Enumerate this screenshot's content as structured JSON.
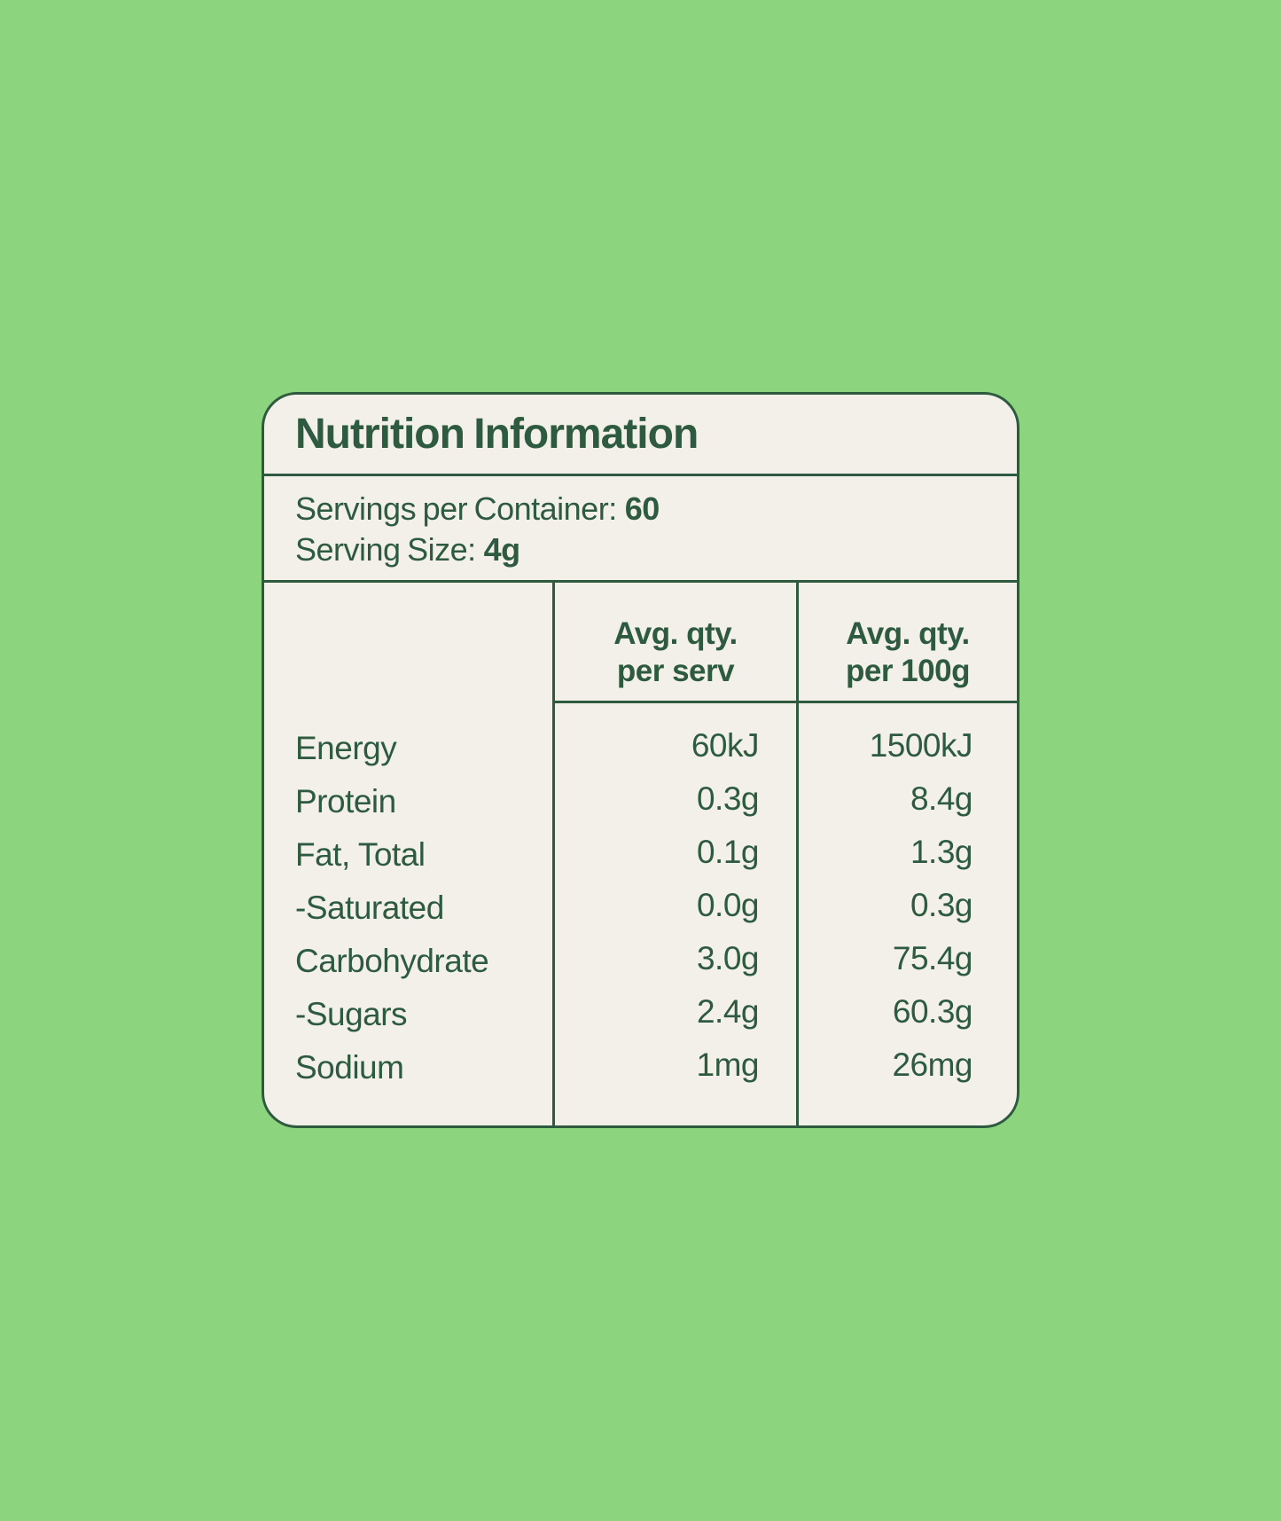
{
  "colors": {
    "background": "#8dd47e",
    "panel": "#f2f0e9",
    "ink": "#2e5b40"
  },
  "label": {
    "title": "Nutrition Information",
    "servings": {
      "label": "Servings per Container:",
      "value": "60"
    },
    "serving_size": {
      "label": "Serving Size:",
      "value": "4g"
    },
    "table": {
      "headers": {
        "per_serv": {
          "line1": "Avg. qty.",
          "line2": "per serv"
        },
        "per_100g": {
          "line1": "Avg. qty.",
          "line2": "per 100g"
        }
      },
      "rows": [
        {
          "label": "Energy",
          "per_serv": "60kJ",
          "per_100g": "1500kJ"
        },
        {
          "label": "Protein",
          "per_serv": "0.3g",
          "per_100g": "8.4g"
        },
        {
          "label": "Fat, Total",
          "per_serv": "0.1g",
          "per_100g": "1.3g"
        },
        {
          "label": "-Saturated",
          "per_serv": "0.0g",
          "per_100g": "0.3g"
        },
        {
          "label": "Carbohydrate",
          "per_serv": "3.0g",
          "per_100g": "75.4g"
        },
        {
          "label": "-Sugars",
          "per_serv": "2.4g",
          "per_100g": "60.3g"
        },
        {
          "label": "Sodium",
          "per_serv": "1mg",
          "per_100g": "26mg"
        }
      ]
    }
  }
}
